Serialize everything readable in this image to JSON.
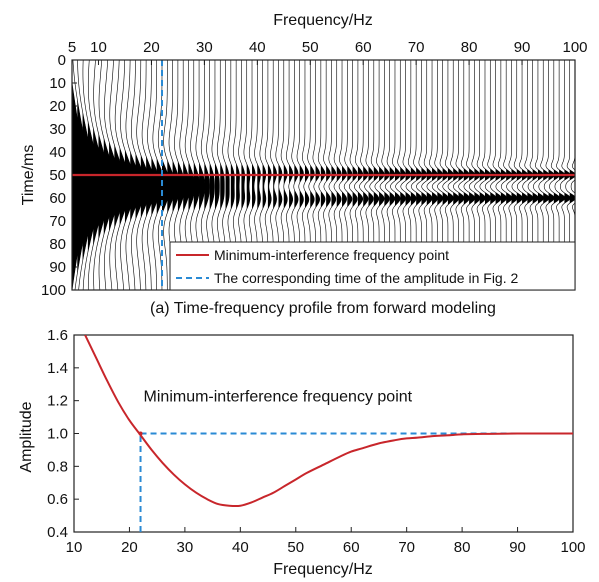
{
  "colors": {
    "minimum_interference": "#c8262b",
    "amplitude_time": "#2a8ad4",
    "wiggle": "#000000"
  },
  "chart_data": [
    {
      "type": "heatmap",
      "subtitle": "(a) Time-frequency profile from forward modeling",
      "xlabel": "Frequency/Hz",
      "ylabel": "Time/ms",
      "x_axis_position": "top",
      "xlim": [
        5,
        100
      ],
      "ylim": [
        100,
        0
      ],
      "x_ticks": [
        5,
        10,
        20,
        30,
        40,
        50,
        60,
        70,
        80,
        90,
        100
      ],
      "y_ticks": [
        0,
        10,
        20,
        30,
        40,
        50,
        60,
        70,
        80,
        90,
        100
      ],
      "trace_frequencies_start": 5,
      "trace_frequencies_end": 100,
      "trace_frequency_step": 1,
      "reflector_times": [
        50,
        60
      ],
      "lines": [
        {
          "name": "Minimum-interference frequency point",
          "orientation": "horizontal",
          "y": 50,
          "style": "solid"
        },
        {
          "name": "The corresponding time of the amplitude in Fig. 2",
          "orientation": "vertical",
          "x": 22,
          "style": "dashed"
        }
      ],
      "legend_position": "bottom-right",
      "legend": [
        "Minimum-interference frequency point",
        "The corresponding time of the amplitude in Fig. 2"
      ]
    },
    {
      "type": "line",
      "xlabel": "Frequency/Hz",
      "ylabel": "Amplitude",
      "xlim": [
        10,
        100
      ],
      "ylim": [
        0.4,
        1.6
      ],
      "x_ticks": [
        10,
        20,
        30,
        40,
        50,
        60,
        70,
        80,
        90,
        100
      ],
      "y_ticks": [
        "0.4",
        "0.6",
        "0.8",
        "1.0",
        "1.2",
        "1.4",
        "1.6"
      ],
      "series": [
        {
          "x": [
            12,
            14,
            16,
            18,
            20,
            22,
            24,
            26,
            28,
            30,
            32,
            34,
            36,
            38,
            40,
            42,
            44,
            46,
            48,
            50,
            52,
            55,
            58,
            60,
            62,
            65,
            68,
            70,
            72,
            75,
            78,
            80,
            85,
            90,
            95,
            100
          ],
          "y": [
            1.6,
            1.46,
            1.32,
            1.19,
            1.08,
            0.99,
            0.9,
            0.82,
            0.75,
            0.69,
            0.64,
            0.6,
            0.57,
            0.56,
            0.56,
            0.58,
            0.61,
            0.64,
            0.68,
            0.72,
            0.76,
            0.81,
            0.86,
            0.89,
            0.91,
            0.94,
            0.96,
            0.97,
            0.975,
            0.985,
            0.99,
            0.995,
            0.998,
            1.0,
            1.0,
            1.0
          ]
        }
      ],
      "reference_lines": [
        {
          "orientation": "horizontal",
          "y": 1.0,
          "from_x": 22,
          "to_x": 100,
          "style": "dashed"
        },
        {
          "orientation": "vertical",
          "x": 22,
          "from_y": 0.4,
          "to_y": 1.0,
          "style": "dashed"
        }
      ],
      "annotation": {
        "text": "Minimum-interference frequency point",
        "x": 22,
        "y": 1.0
      }
    }
  ]
}
